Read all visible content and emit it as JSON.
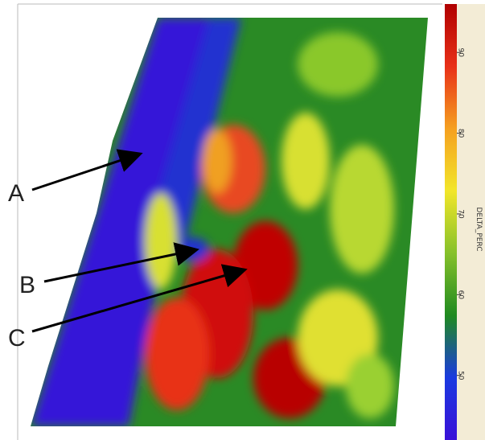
{
  "chart_data": {
    "type": "colorbar",
    "colorbar_label": "DELTA_PERC",
    "clim": [
      42,
      96
    ],
    "ticks": [
      50,
      60,
      70,
      80,
      90
    ],
    "colormap": [
      "#3a10d8",
      "#1a3ae0",
      "#1f8a1f",
      "#86c12a",
      "#f2e62a",
      "#f5a020",
      "#e83018",
      "#b00000"
    ],
    "annotations": [
      "A",
      "B",
      "C"
    ]
  }
}
